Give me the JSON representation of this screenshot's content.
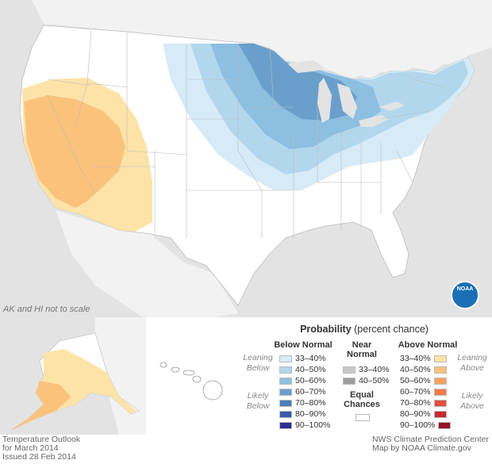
{
  "map": {
    "scale_note": "AK and HI not to scale",
    "logo": "NOAA",
    "colors": {
      "ocean": "#e3e3e3",
      "land": "#ffffff",
      "below_33_40": "#d6ebf7",
      "below_40_50": "#b2d7ec",
      "below_50_60": "#8cbfe0",
      "below_60_70": "#6a9fcc",
      "above_33_40": "#fde3a8",
      "above_40_50": "#fbc27b"
    }
  },
  "legend": {
    "title_bold": "Probability",
    "title_rest": " (percent chance)",
    "below": {
      "header": "Below Normal",
      "items": [
        {
          "label": "33–40%",
          "color": "#d6ebf7"
        },
        {
          "label": "40–50%",
          "color": "#b2d7ec"
        },
        {
          "label": "50–60%",
          "color": "#8cbfe0"
        },
        {
          "label": "60–70%",
          "color": "#6a9fcc"
        },
        {
          "label": "70–80%",
          "color": "#4a7fb9"
        },
        {
          "label": "80–90%",
          "color": "#3b5ba8"
        },
        {
          "label": "90–100%",
          "color": "#2a2f8f"
        }
      ]
    },
    "near": {
      "header_line1": "Near",
      "header_line2": "Normal",
      "items": [
        {
          "label": "33–40%",
          "color": "#c8c8c8"
        },
        {
          "label": "40–50%",
          "color": "#9e9e9e"
        }
      ],
      "equal_line1": "Equal",
      "equal_line2": "Chances",
      "equal_color": "#ffffff"
    },
    "above": {
      "header": "Above Normal",
      "items": [
        {
          "label": "33–40%",
          "color": "#fde3a8"
        },
        {
          "label": "40–50%",
          "color": "#fbc27b"
        },
        {
          "label": "50–60%",
          "color": "#f6a25f"
        },
        {
          "label": "60–70%",
          "color": "#f07b4a"
        },
        {
          "label": "70–80%",
          "color": "#e14f3b"
        },
        {
          "label": "80–90%",
          "color": "#c62a2f"
        },
        {
          "label": "90–100%",
          "color": "#95112a"
        }
      ]
    },
    "leaning_below": [
      "Leaning",
      "Below"
    ],
    "likely_below": [
      "Likely",
      "Below"
    ],
    "leaning_above": [
      "Leaning",
      "Above"
    ],
    "likely_above": [
      "Likely",
      "Above"
    ]
  },
  "footer": {
    "left": [
      "Temperature Outlook",
      "for March 2014",
      "Issued 28 Feb 2014"
    ],
    "right": [
      "NWS Climate Prediction Center",
      "Map by NOAA Climate.gov"
    ]
  }
}
